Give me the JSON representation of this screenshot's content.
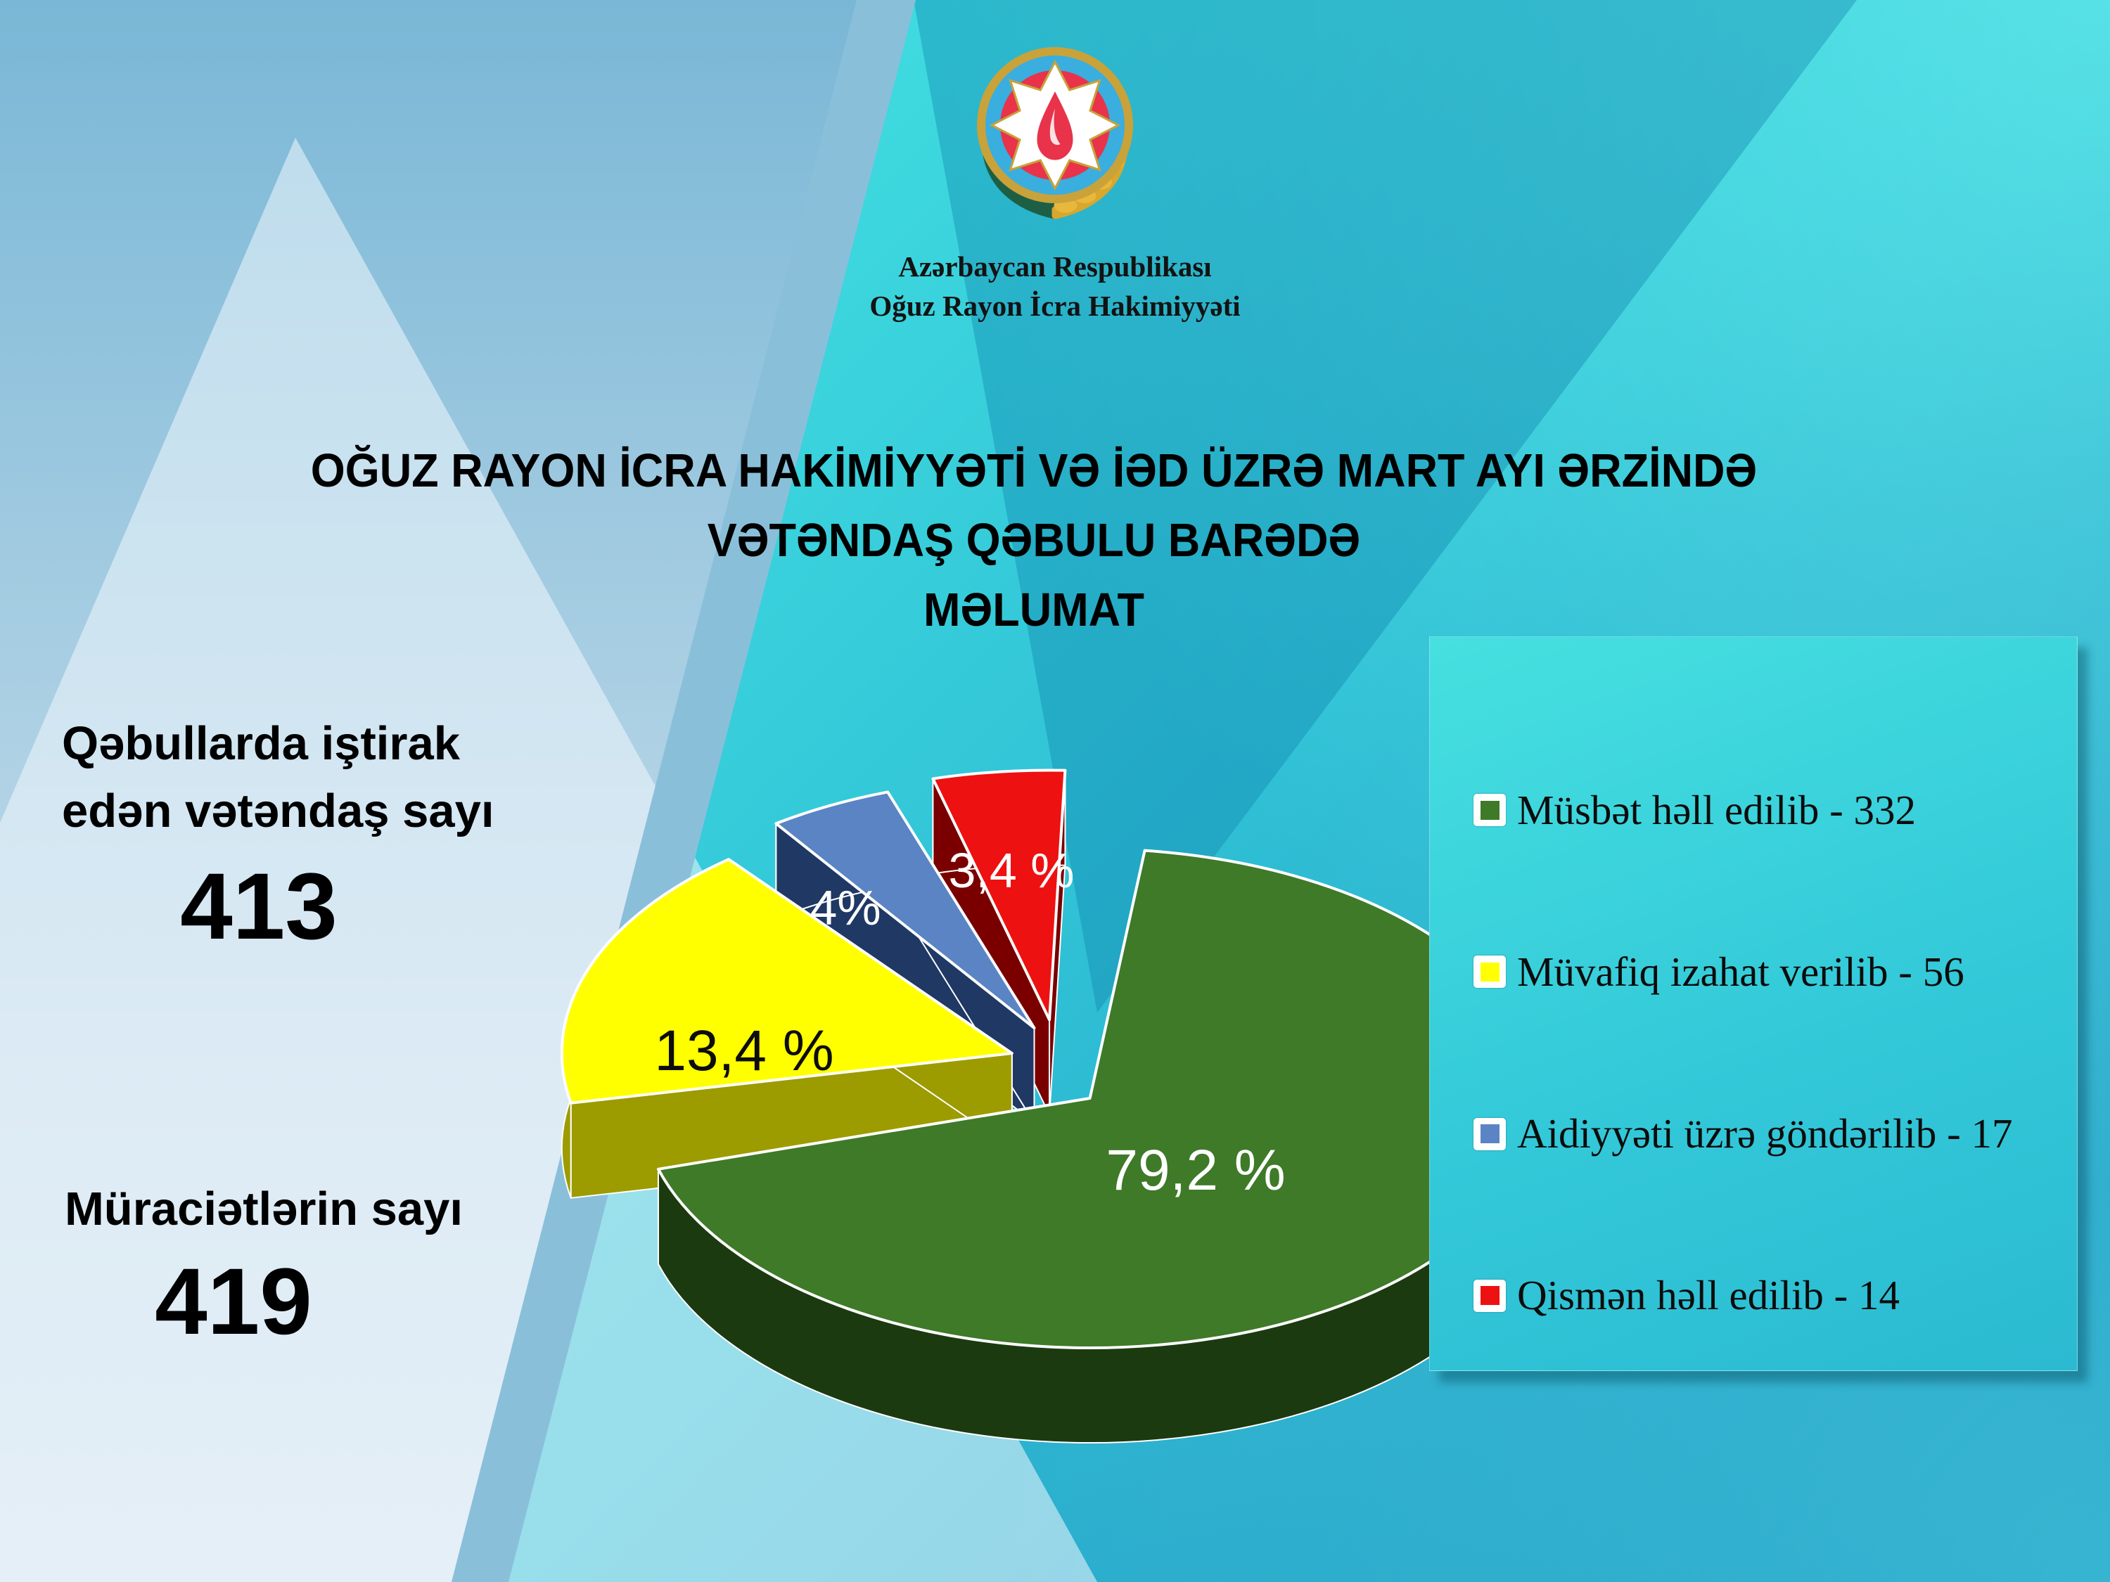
{
  "org": {
    "line1": "Azərbaycan Respublikası",
    "line2": "Oğuz Rayon İcra Hakimiyyəti"
  },
  "title": {
    "line1": "OĞUZ RAYON İCRA HAKİMİYYƏTİ VƏ İƏD ÜZRƏ MART AYI ƏRZİNDƏ",
    "line2": "VƏTƏNDAŞ QƏBULU BARƏDƏ",
    "line3": "MƏLUMAT"
  },
  "stats": {
    "s1": {
      "l1": "Qəbullarda iştirak",
      "l2": "edən vətəndaş sayı",
      "value": "413"
    },
    "s2": {
      "l1": "Müraciətlərin  sayı",
      "value": "419"
    }
  },
  "chart_data": {
    "type": "pie",
    "effect": "3d-exploded",
    "categories": [
      "Müsbət həll edilib",
      "Müvafiq izahat verilib",
      "Aidiyyəti üzrə göndərilib",
      "Qismən həll edilib"
    ],
    "values": [
      332,
      56,
      17,
      14
    ],
    "percents": [
      79.2,
      13.4,
      4.0,
      3.4
    ],
    "percent_labels": [
      "79,2 %",
      "13,4 %",
      "4%",
      "3,4 %"
    ],
    "colors": [
      "#3E7A28",
      "#FFFF00",
      "#5B84C4",
      "#EE1111"
    ],
    "side_colors": [
      "#1C3A10",
      "#9C9B00",
      "#1F3864",
      "#7A0000"
    ],
    "legend_position": "right",
    "total": 419
  },
  "legend": {
    "items": [
      {
        "label": "Müsbət həll edilib - 332",
        "color": "#3E7A28"
      },
      {
        "label": "Müvafiq izahat verilib - 56",
        "color": "#FFFF00"
      },
      {
        "label": "Aidiyyəti üzrə göndərilib - 17",
        "color": "#5B84C4"
      },
      {
        "label": "Qismən həll edilib - 14",
        "color": "#EE1111"
      }
    ]
  }
}
